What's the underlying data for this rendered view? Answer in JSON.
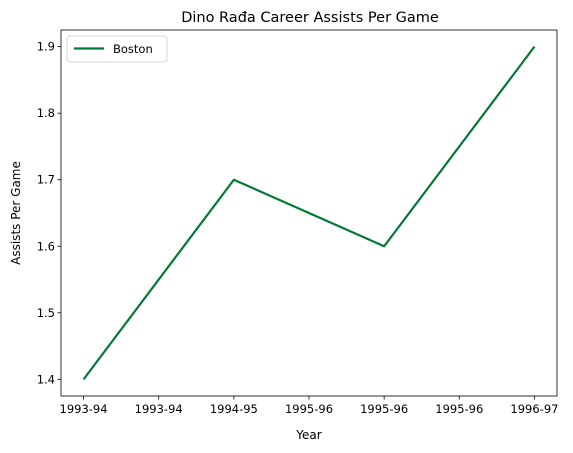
{
  "chart_data": {
    "type": "line",
    "title": "Dino Rađa Career Assists Per Game",
    "xlabel": "Year",
    "ylabel": "Assists Per Game",
    "x_tick_labels": [
      "1993-94",
      "1993-94",
      "1994-95",
      "1995-96",
      "1995-96",
      "1995-96",
      "1996-97"
    ],
    "x": [
      0,
      2,
      4,
      6
    ],
    "y_ticks": [
      "1.4",
      "1.5",
      "1.6",
      "1.7",
      "1.8",
      "1.9"
    ],
    "ylim": [
      1.375,
      1.925
    ],
    "xlim": [
      -0.3,
      6.3
    ],
    "grid": false,
    "legend_position": "upper-left",
    "series": [
      {
        "name": "Boston",
        "color": "#007a33",
        "values": [
          1.4,
          1.7,
          1.6,
          1.9
        ]
      }
    ]
  }
}
